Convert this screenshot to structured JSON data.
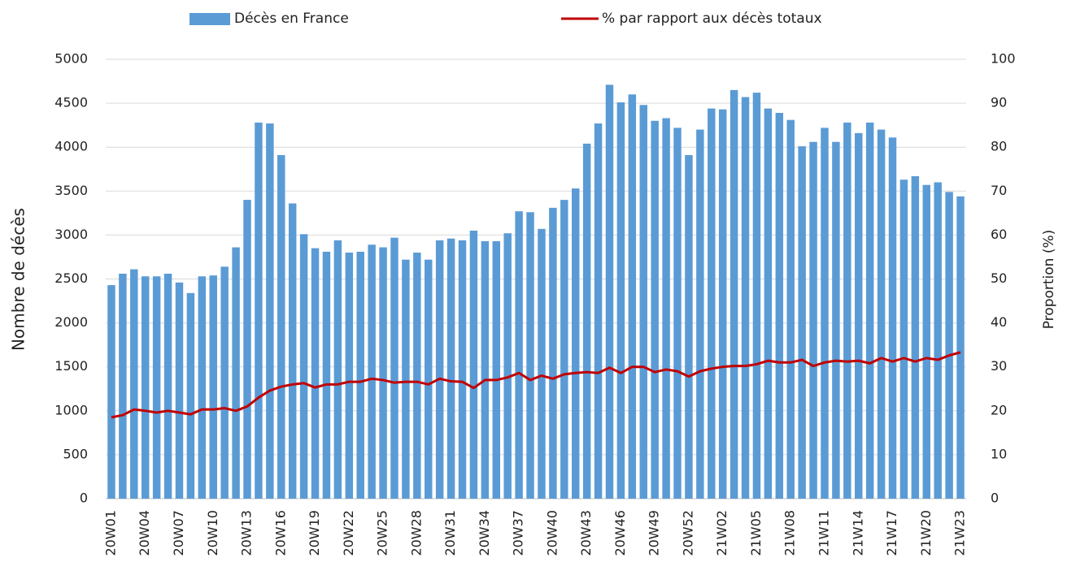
{
  "chart_data": {
    "type": "bar",
    "y_label": "Nombre de décès",
    "y2_label": "Proportion (%)",
    "categories": [
      "20W01",
      null,
      null,
      "20W04",
      null,
      null,
      "20W07",
      null,
      null,
      "20W10",
      null,
      null,
      "20W13",
      null,
      null,
      "20W16",
      null,
      null,
      "20W19",
      null,
      null,
      "20W22",
      null,
      null,
      "20W25",
      null,
      null,
      "20W28",
      null,
      null,
      "20W31",
      null,
      null,
      "20W34",
      null,
      null,
      "20W37",
      null,
      null,
      "20W40",
      null,
      null,
      "20W43",
      null,
      null,
      "20W46",
      null,
      null,
      "20W49",
      null,
      null,
      "20W52",
      null,
      null,
      "21W02",
      null,
      null,
      "21W05",
      null,
      null,
      "21W08",
      null,
      null,
      "21W11",
      null,
      null,
      "21W14",
      null,
      null,
      "21W17",
      null,
      null,
      "21W20",
      null,
      null,
      "21W23"
    ],
    "series": [
      {
        "name": "Décès en France",
        "type": "bar",
        "color": "#5b9bd5",
        "values": [
          2430,
          2560,
          2610,
          2530,
          2530,
          2560,
          2460,
          2340,
          2530,
          2540,
          2640,
          2860,
          3400,
          4280,
          4270,
          3910,
          3360,
          3010,
          2850,
          2810,
          2940,
          2800,
          2810,
          2890,
          2860,
          2970,
          2720,
          2800,
          2720,
          2940,
          2960,
          2940,
          3050,
          2930,
          2930,
          3020,
          3270,
          3260,
          3070,
          3310,
          3400,
          3530,
          4040,
          4270,
          4710,
          4510,
          4600,
          4480,
          4300,
          4330,
          4220,
          3910,
          4200,
          4440,
          4430,
          4650,
          4570,
          4620,
          4440,
          4390,
          4310,
          4010,
          4060,
          4220,
          4060,
          4280,
          4160,
          4280,
          4200,
          4110,
          3630,
          3670,
          3570,
          3600,
          3490,
          3440
        ]
      },
      {
        "name": "% par rapport aux décès totaux",
        "type": "line",
        "axis": "y2",
        "color": "#c00000",
        "values": [
          18.5,
          19,
          20.3,
          20,
          19.6,
          20,
          19.6,
          19.2,
          20.3,
          20.3,
          20.6,
          20,
          21,
          23,
          24.6,
          25.5,
          26,
          26.3,
          25.3,
          26,
          26,
          26.6,
          26.6,
          27.3,
          27,
          26.4,
          26.6,
          26.6,
          26,
          27.3,
          26.7,
          26.6,
          25.2,
          27,
          27,
          27.6,
          28.6,
          27,
          28,
          27.3,
          28.3,
          28.6,
          28.8,
          28.6,
          29.8,
          28.6,
          30,
          30,
          28.8,
          29.4,
          29,
          27.8,
          29,
          29.6,
          30,
          30.2,
          30.2,
          30.6,
          31.4,
          31,
          31,
          31.6,
          30.2,
          31,
          31.4,
          31.2,
          31.4,
          30.8,
          32,
          31.2,
          32,
          31.2,
          32,
          31.6,
          32.6,
          33.3
        ]
      }
    ],
    "ylim": [
      0,
      5000
    ],
    "yticks": [
      0,
      500,
      1000,
      1500,
      2000,
      2500,
      3000,
      3500,
      4000,
      4500,
      5000
    ],
    "y2lim": [
      0,
      100
    ],
    "y2ticks": [
      0,
      10,
      20,
      30,
      40,
      50,
      60,
      70,
      80,
      90,
      100
    ],
    "grid": true
  }
}
